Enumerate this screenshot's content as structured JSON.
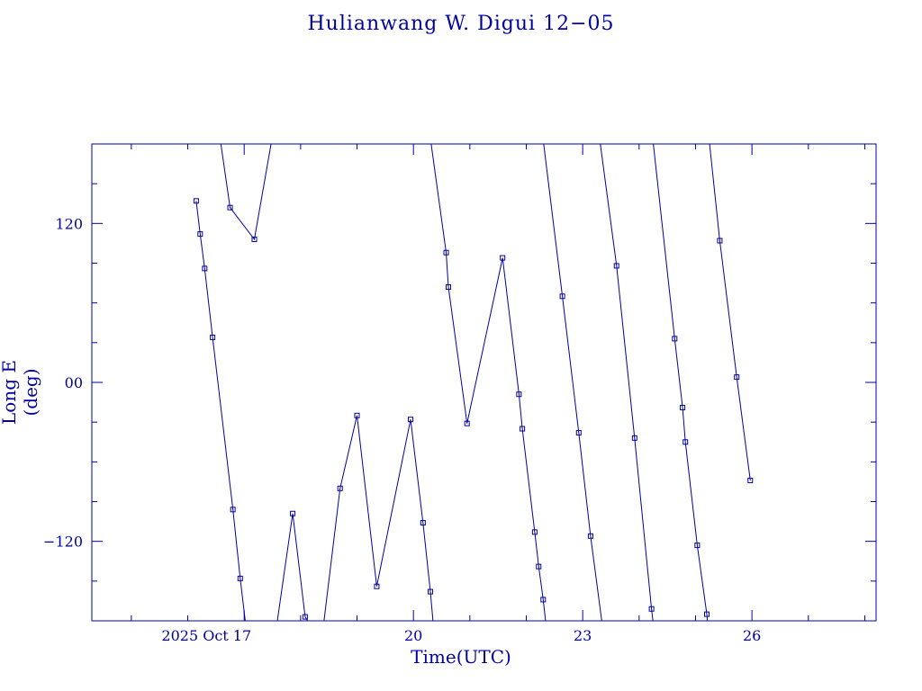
{
  "chart_data": {
    "type": "line",
    "title": "Hulianwang W. Digui 12−05",
    "xlabel": "Time(UTC)",
    "ylabel": "Long E (deg)",
    "xlim": [
      14.3,
      28.2
    ],
    "ylim": [
      -180,
      180
    ],
    "x_ticks": [
      {
        "value": 17,
        "label": "2025 Oct 17"
      },
      {
        "value": 20,
        "label": "20"
      },
      {
        "value": 23,
        "label": "23"
      },
      {
        "value": 26,
        "label": "26"
      }
    ],
    "y_ticks": [
      {
        "value": 120,
        "label": "120"
      },
      {
        "value": 0,
        "label": "00"
      },
      {
        "value": -120,
        "label": "−120"
      }
    ],
    "grid": false,
    "colors": {
      "line": "#0000a0",
      "axis": "#0000a0"
    },
    "series": [
      {
        "marker": "square",
        "points": [
          [
            16.15,
            137
          ],
          [
            16.22,
            112
          ],
          [
            16.3,
            86
          ],
          [
            16.44,
            34
          ],
          [
            16.8,
            -96
          ],
          [
            16.93,
            -148
          ],
          [
            17.05,
            -191
          ],
          [
            17.55,
            -191
          ],
          [
            17.86,
            -99
          ],
          [
            18.08,
            -177
          ],
          [
            18.37,
            -196
          ]
        ]
      },
      {
        "marker": "square",
        "points": [
          [
            16.55,
            191
          ],
          [
            16.75,
            132
          ],
          [
            17.18,
            108
          ],
          [
            17.55,
            198
          ]
        ]
      },
      {
        "marker": "square",
        "points": [
          [
            18.37,
            -196
          ],
          [
            18.7,
            -80
          ],
          [
            19.0,
            -25
          ],
          [
            19.35,
            -154
          ],
          [
            19.95,
            -28
          ],
          [
            20.17,
            -106
          ],
          [
            20.3,
            -158
          ],
          [
            20.45,
            -230
          ]
        ]
      },
      {
        "marker": "square",
        "points": [
          [
            20.25,
            200
          ],
          [
            20.58,
            98
          ],
          [
            20.62,
            72
          ],
          [
            20.95,
            -31
          ],
          [
            21.58,
            94
          ],
          [
            21.87,
            -9
          ],
          [
            21.93,
            -35
          ],
          [
            22.15,
            -113
          ],
          [
            22.22,
            -139
          ],
          [
            22.3,
            -164
          ],
          [
            22.42,
            -210
          ]
        ]
      },
      {
        "marker": "square",
        "points": [
          [
            22.25,
            200
          ],
          [
            22.64,
            65
          ],
          [
            22.93,
            -38
          ],
          [
            23.14,
            -116
          ],
          [
            23.4,
            -200
          ]
        ]
      },
      {
        "marker": "square",
        "points": [
          [
            23.25,
            200
          ],
          [
            23.6,
            88
          ],
          [
            23.92,
            -42
          ],
          [
            24.22,
            -171
          ],
          [
            24.3,
            -200
          ]
        ]
      },
      {
        "marker": "square",
        "points": [
          [
            24.2,
            200
          ],
          [
            24.63,
            33
          ],
          [
            24.77,
            -19
          ],
          [
            24.82,
            -45
          ],
          [
            25.03,
            -123
          ],
          [
            25.2,
            -175
          ],
          [
            25.25,
            -200
          ]
        ]
      },
      {
        "marker": "square",
        "points": [
          [
            25.2,
            200
          ],
          [
            25.43,
            107
          ],
          [
            25.73,
            4
          ],
          [
            25.97,
            -74
          ]
        ]
      }
    ]
  }
}
